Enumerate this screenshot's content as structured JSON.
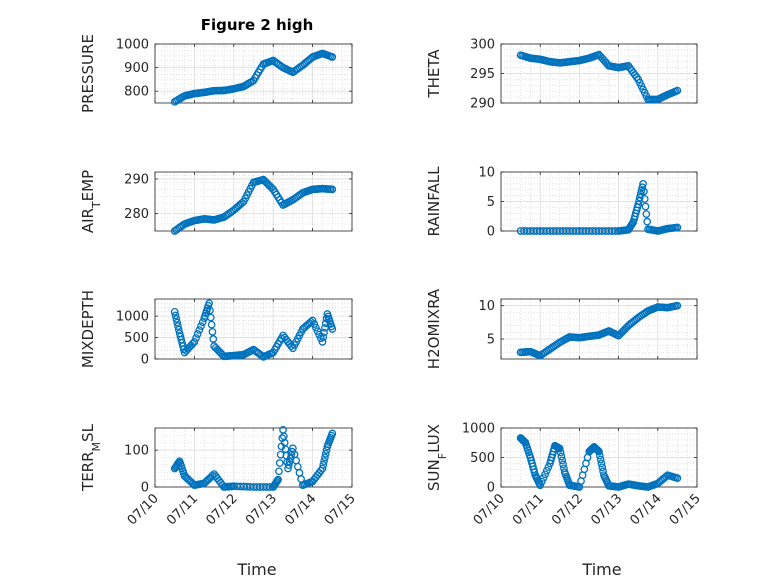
{
  "title": "Figure 2 high",
  "xlabel": "Time",
  "x_ticks": [
    "07/10",
    "07/11",
    "07/12",
    "07/13",
    "07/14",
    "07/15"
  ],
  "marker_color": "#0072BD",
  "chart_data": [
    {
      "type": "scatter",
      "ylabel": "PRESSURE",
      "ylim": [
        750,
        1000
      ],
      "yticks": [
        800,
        900,
        1000
      ],
      "grid": true,
      "x": [
        "07/10 12:00",
        "07/10 18:00",
        "07/11 00:00",
        "07/11 06:00",
        "07/11 12:00",
        "07/11 18:00",
        "07/12 00:00",
        "07/12 06:00",
        "07/12 12:00",
        "07/12 18:00",
        "07/13 00:00",
        "07/13 06:00",
        "07/13 12:00",
        "07/13 18:00",
        "07/14 00:00",
        "07/14 06:00",
        "07/14 12:00"
      ],
      "y": [
        755,
        780,
        790,
        795,
        802,
        803,
        810,
        820,
        845,
        915,
        930,
        900,
        880,
        910,
        945,
        960,
        945
      ]
    },
    {
      "type": "scatter",
      "ylabel": "THETA",
      "ylim": [
        290,
        300
      ],
      "yticks": [
        290,
        295,
        300
      ],
      "grid": true,
      "x": [
        "07/10 12:00",
        "07/10 18:00",
        "07/11 00:00",
        "07/11 06:00",
        "07/11 12:00",
        "07/11 18:00",
        "07/12 00:00",
        "07/12 06:00",
        "07/12 12:00",
        "07/12 18:00",
        "07/13 00:00",
        "07/13 06:00",
        "07/13 12:00",
        "07/13 18:00",
        "07/14 00:00",
        "07/14 06:00",
        "07/14 12:00"
      ],
      "y": [
        298.1,
        297.6,
        297.4,
        297.0,
        296.8,
        297.0,
        297.2,
        297.6,
        298.2,
        296.3,
        296.0,
        296.3,
        294.0,
        290.6,
        290.6,
        291.4,
        292.1
      ]
    },
    {
      "type": "scatter",
      "ylabel": "AIR_TEMP",
      "ylim": [
        275,
        292
      ],
      "yticks": [
        280,
        290
      ],
      "grid": true,
      "x": [
        "07/10 12:00",
        "07/10 18:00",
        "07/11 00:00",
        "07/11 06:00",
        "07/11 12:00",
        "07/11 18:00",
        "07/12 00:00",
        "07/12 06:00",
        "07/12 12:00",
        "07/12 18:00",
        "07/13 00:00",
        "07/13 06:00",
        "07/13 12:00",
        "07/13 18:00",
        "07/14 00:00",
        "07/14 06:00",
        "07/14 12:00"
      ],
      "y": [
        275.0,
        277.0,
        278.0,
        278.5,
        278.2,
        279.0,
        281.0,
        283.5,
        289.0,
        289.8,
        287.0,
        282.5,
        284.0,
        286.0,
        287.0,
        287.2,
        287.0
      ]
    },
    {
      "type": "scatter",
      "ylabel": "RAINFALL",
      "ylim": [
        0,
        10
      ],
      "yticks": [
        0,
        5,
        10
      ],
      "grid": true,
      "x": [
        "07/10 12:00",
        "07/11 00:00",
        "07/11 12:00",
        "07/12 00:00",
        "07/12 12:00",
        "07/13 00:00",
        "07/13 06:00",
        "07/13 09:00",
        "07/13 12:00",
        "07/13 15:00",
        "07/13 18:00",
        "07/14 00:00",
        "07/14 06:00",
        "07/14 12:00"
      ],
      "y": [
        0,
        0,
        0,
        0,
        0,
        0,
        0.2,
        1.5,
        4.5,
        8.0,
        0.3,
        0,
        0.4,
        0.6
      ]
    },
    {
      "type": "scatter",
      "ylabel": "MIXDEPTH",
      "ylim": [
        0,
        1400
      ],
      "yticks": [
        0,
        500,
        1000
      ],
      "grid": true,
      "x": [
        "07/10 12:00",
        "07/10 15:00",
        "07/10 18:00",
        "07/11 00:00",
        "07/11 06:00",
        "07/11 09:00",
        "07/11 12:00",
        "07/11 18:00",
        "07/12 00:00",
        "07/12 06:00",
        "07/12 12:00",
        "07/12 18:00",
        "07/13 00:00",
        "07/13 06:00",
        "07/13 12:00",
        "07/13 18:00",
        "07/14 00:00",
        "07/14 06:00",
        "07/14 09:00",
        "07/14 12:00"
      ],
      "y": [
        1100,
        600,
        150,
        400,
        950,
        1300,
        300,
        60,
        80,
        100,
        220,
        50,
        150,
        550,
        250,
        700,
        900,
        400,
        1050,
        700
      ]
    },
    {
      "type": "scatter",
      "ylabel": "H2OMIXRA",
      "ylim": [
        2,
        11
      ],
      "yticks": [
        5,
        10
      ],
      "grid": true,
      "x": [
        "07/10 12:00",
        "07/10 18:00",
        "07/11 00:00",
        "07/11 06:00",
        "07/11 12:00",
        "07/11 18:00",
        "07/12 00:00",
        "07/12 06:00",
        "07/12 12:00",
        "07/12 18:00",
        "07/13 00:00",
        "07/13 06:00",
        "07/13 12:00",
        "07/13 18:00",
        "07/14 00:00",
        "07/14 06:00",
        "07/14 12:00"
      ],
      "y": [
        3.0,
        3.1,
        2.5,
        3.5,
        4.5,
        5.3,
        5.2,
        5.4,
        5.6,
        6.2,
        5.5,
        7.0,
        8.2,
        9.2,
        9.8,
        9.7,
        10.0
      ]
    },
    {
      "type": "scatter",
      "ylabel": "TERR_MSL",
      "ylim": [
        0,
        160
      ],
      "yticks": [
        0,
        100
      ],
      "grid": true,
      "x": [
        "07/10 12:00",
        "07/10 15:00",
        "07/10 18:00",
        "07/11 00:00",
        "07/11 06:00",
        "07/11 12:00",
        "07/11 18:00",
        "07/12 00:00",
        "07/12 12:00",
        "07/13 00:00",
        "07/13 03:00",
        "07/13 06:00",
        "07/13 09:00",
        "07/13 12:00",
        "07/13 18:00",
        "07/14 00:00",
        "07/14 06:00",
        "07/14 09:00",
        "07/14 12:00"
      ],
      "y": [
        50,
        70,
        30,
        5,
        10,
        35,
        0,
        2,
        0,
        0,
        20,
        155,
        50,
        105,
        5,
        15,
        50,
        110,
        145
      ]
    },
    {
      "type": "scatter",
      "ylabel": "SUN_FLUX",
      "ylim": [
        0,
        1000
      ],
      "yticks": [
        0,
        500,
        1000
      ],
      "grid": true,
      "x": [
        "07/10 12:00",
        "07/10 15:00",
        "07/10 18:00",
        "07/10 21:00",
        "07/11 00:00",
        "07/11 06:00",
        "07/11 09:00",
        "07/11 12:00",
        "07/11 15:00",
        "07/11 18:00",
        "07/12 00:00",
        "07/12 06:00",
        "07/12 09:00",
        "07/12 12:00",
        "07/12 15:00",
        "07/12 18:00",
        "07/13 00:00",
        "07/13 06:00",
        "07/13 12:00",
        "07/13 18:00",
        "07/14 00:00",
        "07/14 06:00",
        "07/14 12:00"
      ],
      "y": [
        830,
        750,
        500,
        200,
        30,
        400,
        700,
        650,
        250,
        30,
        0,
        600,
        680,
        600,
        200,
        20,
        0,
        50,
        20,
        0,
        60,
        200,
        150
      ]
    }
  ]
}
